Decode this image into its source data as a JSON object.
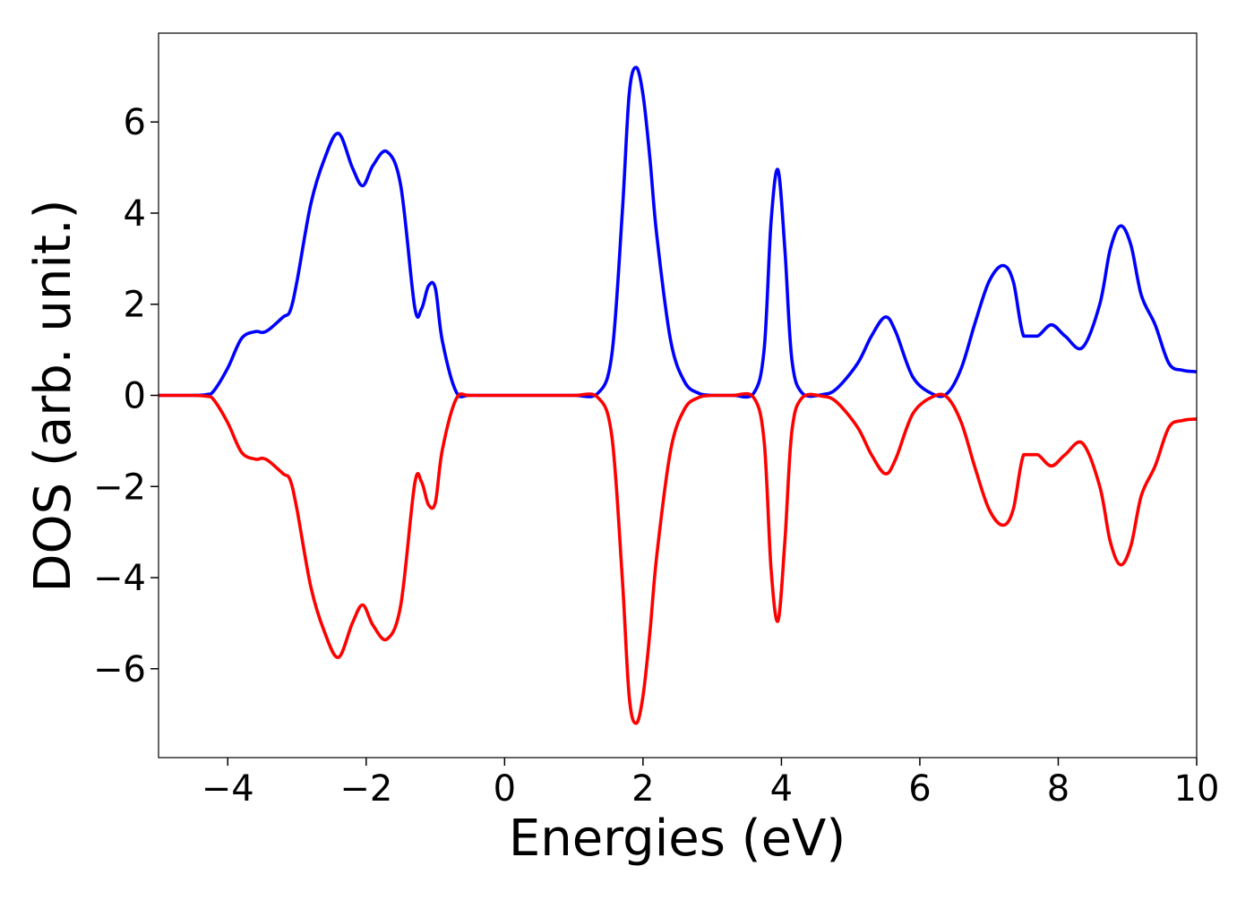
{
  "chart_data": {
    "type": "line",
    "title": "",
    "xlabel": "Energies (eV)",
    "ylabel": "DOS (arb. unit.)",
    "xlim": [
      -5,
      10
    ],
    "ylim": [
      -7.95,
      7.95
    ],
    "xticks": [
      -4,
      -2,
      0,
      2,
      4,
      6,
      8,
      10
    ],
    "xtick_labels": [
      "−4",
      "−2",
      "0",
      "2",
      "4",
      "6",
      "8",
      "10"
    ],
    "yticks": [
      -6,
      -4,
      -2,
      0,
      2,
      4,
      6
    ],
    "ytick_labels": [
      "−6",
      "−4",
      "−2",
      "0",
      "2",
      "4",
      "6"
    ],
    "grid": false,
    "legend": false,
    "series": [
      {
        "color": "#0000ff",
        "x": [
          -5.0,
          -4.5,
          -4.3,
          -4.2,
          -4.0,
          -3.8,
          -3.6,
          -3.5,
          -3.4,
          -3.2,
          -3.1,
          -3.0,
          -2.8,
          -2.6,
          -2.4,
          -2.2,
          -2.05,
          -1.9,
          -1.7,
          -1.5,
          -1.3,
          -1.2,
          -1.1,
          -1.0,
          -0.9,
          -0.7,
          -0.5,
          0.0,
          0.5,
          1.0,
          1.35,
          1.55,
          1.7,
          1.8,
          1.9,
          2.0,
          2.1,
          2.2,
          2.4,
          2.6,
          2.8,
          3.0,
          3.3,
          3.6,
          3.75,
          3.85,
          3.95,
          4.05,
          4.15,
          4.3,
          4.6,
          4.8,
          5.1,
          5.3,
          5.5,
          5.65,
          5.9,
          6.2,
          6.4,
          6.6,
          6.8,
          7.0,
          7.2,
          7.35,
          7.5,
          7.7,
          7.9,
          8.1,
          8.35,
          8.6,
          8.75,
          8.9,
          9.05,
          9.2,
          9.4,
          9.6,
          9.8,
          10.0
        ],
        "y": [
          0.0,
          0.0,
          0.02,
          0.1,
          0.6,
          1.25,
          1.4,
          1.38,
          1.45,
          1.72,
          1.85,
          2.5,
          4.2,
          5.2,
          5.75,
          5.0,
          4.6,
          5.05,
          5.35,
          4.6,
          1.95,
          1.9,
          2.4,
          2.35,
          1.2,
          0.08,
          0.0,
          0.0,
          0.0,
          0.0,
          0.05,
          0.9,
          4.0,
          6.6,
          7.2,
          6.6,
          5.2,
          3.5,
          1.2,
          0.3,
          0.05,
          0.0,
          0.0,
          0.05,
          1.0,
          3.8,
          4.95,
          3.2,
          0.8,
          0.05,
          0.02,
          0.15,
          0.7,
          1.3,
          1.72,
          1.4,
          0.4,
          0.02,
          0.05,
          0.6,
          1.6,
          2.5,
          2.85,
          2.5,
          1.3,
          1.3,
          1.55,
          1.3,
          1.05,
          2.0,
          3.2,
          3.72,
          3.3,
          2.2,
          1.55,
          0.7,
          0.55,
          0.52
        ]
      },
      {
        "color": "#ff0000",
        "x": [
          -5.0,
          -4.5,
          -4.3,
          -4.2,
          -4.0,
          -3.8,
          -3.6,
          -3.5,
          -3.4,
          -3.2,
          -3.1,
          -3.0,
          -2.8,
          -2.6,
          -2.4,
          -2.2,
          -2.05,
          -1.9,
          -1.7,
          -1.5,
          -1.3,
          -1.2,
          -1.1,
          -1.0,
          -0.9,
          -0.7,
          -0.5,
          0.0,
          0.5,
          1.0,
          1.35,
          1.55,
          1.7,
          1.8,
          1.9,
          2.0,
          2.1,
          2.2,
          2.4,
          2.6,
          2.8,
          3.0,
          3.3,
          3.6,
          3.75,
          3.85,
          3.95,
          4.05,
          4.15,
          4.3,
          4.6,
          4.8,
          5.1,
          5.3,
          5.5,
          5.65,
          5.9,
          6.2,
          6.4,
          6.6,
          6.8,
          7.0,
          7.2,
          7.35,
          7.5,
          7.7,
          7.9,
          8.1,
          8.35,
          8.6,
          8.75,
          8.9,
          9.05,
          9.2,
          9.4,
          9.6,
          9.8,
          10.0
        ],
        "y": [
          0.0,
          0.0,
          -0.02,
          -0.1,
          -0.6,
          -1.25,
          -1.4,
          -1.38,
          -1.45,
          -1.72,
          -1.85,
          -2.5,
          -4.2,
          -5.2,
          -5.75,
          -5.0,
          -4.6,
          -5.05,
          -5.35,
          -4.6,
          -1.95,
          -1.9,
          -2.4,
          -2.35,
          -1.2,
          -0.08,
          0.0,
          0.0,
          0.0,
          0.0,
          -0.05,
          -0.9,
          -4.0,
          -6.6,
          -7.2,
          -6.6,
          -5.2,
          -3.5,
          -1.2,
          -0.3,
          -0.05,
          0.0,
          0.0,
          -0.05,
          -1.0,
          -3.8,
          -4.95,
          -3.2,
          -0.8,
          -0.05,
          -0.02,
          -0.15,
          -0.7,
          -1.3,
          -1.72,
          -1.4,
          -0.4,
          -0.02,
          -0.05,
          -0.6,
          -1.6,
          -2.5,
          -2.85,
          -2.5,
          -1.3,
          -1.3,
          -1.55,
          -1.3,
          -1.05,
          -2.0,
          -3.2,
          -3.72,
          -3.3,
          -2.2,
          -1.55,
          -0.7,
          -0.55,
          -0.52
        ]
      }
    ]
  }
}
